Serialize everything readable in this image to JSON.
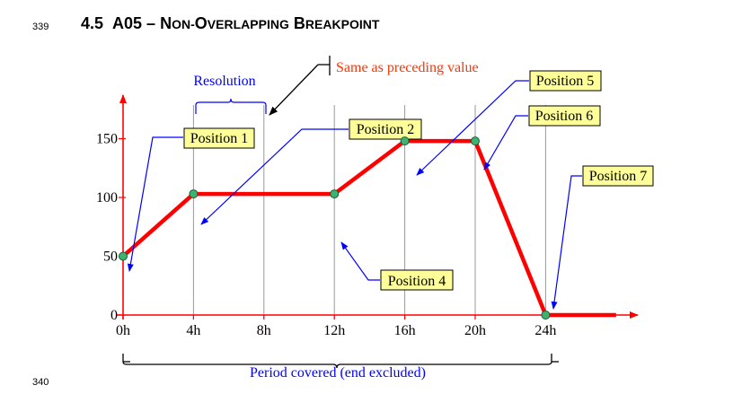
{
  "page": {
    "line_number_top": "339",
    "line_number_bottom": "340",
    "section_number": "4.5",
    "section_title_prefix": "A05 – ",
    "section_title_words": [
      "NON-OVERLAPPING",
      "BREAKPOINT"
    ]
  },
  "diagram": {
    "resolution_label": "Resolution",
    "same_value_label": "Same as preceding value",
    "period_label": "Period covered (end excluded)",
    "x_ticks": [
      "0h",
      "4h",
      "8h",
      "12h",
      "16h",
      "20h",
      "24h"
    ],
    "y_ticks": [
      "0",
      "50",
      "100",
      "150"
    ],
    "positions": [
      "Position 1",
      "Position 2",
      "Position 4",
      "Position 5",
      "Position 6",
      "Position 7"
    ],
    "series": [
      {
        "hour": 0,
        "value": 50
      },
      {
        "hour": 4,
        "value": 103
      },
      {
        "hour": 12,
        "value": 103
      },
      {
        "hour": 16,
        "value": 148
      },
      {
        "hour": 20,
        "value": 148
      },
      {
        "hour": 24,
        "value": 0
      }
    ],
    "end_point": {
      "hour": 28,
      "value": 0
    },
    "colors": {
      "axis": "#ff0000",
      "series": "#ff0000",
      "marker_fill": "#3cb371",
      "callout_fill": "#ffff99",
      "callout_arrow": "#0000ff",
      "label_blue": "#0000ff",
      "label_red": "#ff3300",
      "grid": "#999999"
    }
  }
}
